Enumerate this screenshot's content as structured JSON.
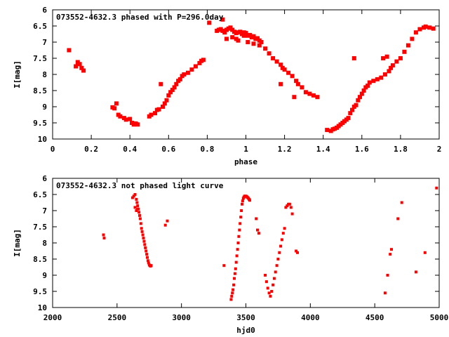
{
  "chart_data": [
    {
      "type": "scatter",
      "title": "073552-4632.3 phased with P=296.0day",
      "xlabel": "phase",
      "ylabel": "I[mag]",
      "xlim": [
        0,
        2
      ],
      "ylim": [
        10,
        6
      ],
      "y_inverted": true,
      "grid": false,
      "xticks": [
        "0",
        "0.2",
        "0.4",
        "0.6",
        "0.8",
        "1",
        "1.2",
        "1.4",
        "1.6",
        "1.8",
        "2"
      ],
      "yticks": [
        "6",
        "6.5",
        "7",
        "7.5",
        "8",
        "8.5",
        "9",
        "9.5",
        "10"
      ],
      "marker_color": "#ff0000",
      "series": [
        {
          "x": [
            0.085,
            0.12,
            0.13,
            0.14,
            0.15,
            0.16,
            0.31,
            0.32,
            0.33,
            0.34,
            0.35,
            0.37,
            0.38,
            0.4,
            0.41,
            0.42,
            0.43,
            0.44,
            0.5,
            0.51,
            0.53,
            0.54,
            0.55,
            0.56,
            0.57,
            0.58,
            0.59,
            0.6,
            0.61,
            0.62,
            0.63,
            0.64,
            0.65,
            0.66,
            0.67,
            0.68,
            0.7,
            0.72,
            0.74,
            0.76,
            0.77,
            0.78,
            0.81,
            0.85,
            0.86,
            0.87,
            0.88,
            0.89,
            0.9,
            0.91,
            0.92,
            0.93,
            0.94,
            0.95,
            0.96,
            0.97,
            0.98,
            0.99,
            1.0,
            1.01,
            1.02,
            1.03,
            1.04,
            1.05,
            1.06,
            1.07,
            1.08,
            1.1,
            1.12,
            1.14,
            1.16,
            1.18,
            1.19,
            1.2,
            1.22,
            1.24,
            1.26,
            1.27,
            1.29,
            1.31,
            1.33,
            1.35,
            1.37,
            0.9,
            0.93,
            0.96,
            0.99,
            1.01,
            1.04,
            1.07,
            1.18,
            1.25,
            1.42,
            1.44,
            1.45,
            1.46,
            1.47,
            1.48,
            1.49,
            1.5,
            1.51,
            1.52,
            1.53,
            1.54,
            1.55,
            1.56,
            1.57,
            1.58,
            1.59,
            1.6,
            1.61,
            1.62,
            1.63,
            1.64,
            1.66,
            1.68,
            1.7,
            1.72,
            1.74,
            1.75,
            1.76,
            1.78,
            1.8,
            1.82,
            1.84,
            1.86,
            1.88,
            1.9,
            1.92,
            1.93,
            1.95,
            1.97,
            1.71,
            1.73,
            1.56,
            0.88,
            0.95
          ],
          "y": [
            7.25,
            7.75,
            7.62,
            7.68,
            7.8,
            7.88,
            9.02,
            9.05,
            8.9,
            9.25,
            9.3,
            9.35,
            9.4,
            9.38,
            9.5,
            9.55,
            9.52,
            9.55,
            9.3,
            9.25,
            9.2,
            9.1,
            9.08,
            8.3,
            9.0,
            8.9,
            8.8,
            8.65,
            8.55,
            8.48,
            8.4,
            8.3,
            8.2,
            8.15,
            8.05,
            8.0,
            7.95,
            7.85,
            7.75,
            7.65,
            7.58,
            7.55,
            6.4,
            6.65,
            6.62,
            6.6,
            6.65,
            6.7,
            6.62,
            6.58,
            6.55,
            6.62,
            6.68,
            6.72,
            6.7,
            6.68,
            6.75,
            6.7,
            6.72,
            6.8,
            6.78,
            6.85,
            6.82,
            6.9,
            6.88,
            6.95,
            7.0,
            7.2,
            7.35,
            7.5,
            7.6,
            7.7,
            7.8,
            7.85,
            7.95,
            8.05,
            8.2,
            8.3,
            8.4,
            8.55,
            8.6,
            8.65,
            8.7,
            6.9,
            6.85,
            6.95,
            6.8,
            7.0,
            7.05,
            7.1,
            8.3,
            8.7,
            9.72,
            9.75,
            9.7,
            9.68,
            9.65,
            9.6,
            9.55,
            9.5,
            9.45,
            9.4,
            9.35,
            9.2,
            9.1,
            9.0,
            8.95,
            8.8,
            8.7,
            8.6,
            8.5,
            8.4,
            8.35,
            8.25,
            8.2,
            8.15,
            8.1,
            8.0,
            7.9,
            7.8,
            7.72,
            7.6,
            7.5,
            7.3,
            7.1,
            6.9,
            6.7,
            6.6,
            6.55,
            6.52,
            6.55,
            6.58,
            7.5,
            7.45,
            7.5,
            6.3,
            6.9
          ]
        }
      ]
    },
    {
      "type": "scatter",
      "title": "073552-4632.3 not phased light curve",
      "xlabel": "hjd0",
      "ylabel": "I[mag]",
      "xlim": [
        2000,
        5000
      ],
      "ylim": [
        10,
        6
      ],
      "y_inverted": true,
      "grid": false,
      "xticks": [
        "2000",
        "2500",
        "3000",
        "3500",
        "4000",
        "4500",
        "5000"
      ],
      "yticks": [
        "6",
        "6.5",
        "7",
        "7.5",
        "8",
        "8.5",
        "9",
        "9.5",
        "10"
      ],
      "marker_color": "#ff0000",
      "series": [
        {
          "x": [
            2395,
            2400,
            2620,
            2630,
            2640,
            2650,
            2655,
            2660,
            2665,
            2670,
            2675,
            2680,
            2685,
            2690,
            2695,
            2700,
            2705,
            2710,
            2715,
            2720,
            2725,
            2730,
            2735,
            2740,
            2745,
            2750,
            2755,
            2760,
            2765,
            2640,
            2650,
            2660,
            2875,
            2890,
            3330,
            3385,
            3390,
            3395,
            3400,
            3405,
            3410,
            3415,
            3420,
            3425,
            3430,
            3435,
            3440,
            3445,
            3450,
            3455,
            3460,
            3465,
            3470,
            3475,
            3480,
            3485,
            3490,
            3495,
            3500,
            3505,
            3510,
            3515,
            3520,
            3525,
            3530,
            3580,
            3590,
            3600,
            3650,
            3660,
            3670,
            3680,
            3690,
            3700,
            3710,
            3720,
            3730,
            3740,
            3750,
            3760,
            3770,
            3780,
            3790,
            3800,
            3810,
            3820,
            3830,
            3840,
            3850,
            3860,
            3890,
            3900,
            4580,
            4600,
            4620,
            4630,
            4680,
            4710,
            4820,
            4890,
            4980
          ],
          "y": [
            7.75,
            7.85,
            6.6,
            6.55,
            6.5,
            6.65,
            6.75,
            6.85,
            6.95,
            7.05,
            7.15,
            7.25,
            7.4,
            7.55,
            7.65,
            7.75,
            7.85,
            7.95,
            8.05,
            8.15,
            8.25,
            8.35,
            8.45,
            8.55,
            8.62,
            8.68,
            8.7,
            8.72,
            8.7,
            6.9,
            7.0,
            6.95,
            7.45,
            7.32,
            8.7,
            9.75,
            9.65,
            9.55,
            9.45,
            9.3,
            9.1,
            8.95,
            8.8,
            8.6,
            8.4,
            8.2,
            8.0,
            7.8,
            7.6,
            7.4,
            7.2,
            7.0,
            6.8,
            6.7,
            6.62,
            6.58,
            6.55,
            6.55,
            6.55,
            6.56,
            6.58,
            6.6,
            6.62,
            6.65,
            6.68,
            7.25,
            7.6,
            7.7,
            9.0,
            9.2,
            9.4,
            9.55,
            9.65,
            9.5,
            9.3,
            9.1,
            8.9,
            8.7,
            8.5,
            8.3,
            8.1,
            7.9,
            7.7,
            7.55,
            6.9,
            6.85,
            6.8,
            6.8,
            6.9,
            7.1,
            8.25,
            8.3,
            9.55,
            9.0,
            8.35,
            8.2,
            7.25,
            6.75,
            8.9,
            8.3,
            6.3
          ]
        }
      ]
    }
  ]
}
